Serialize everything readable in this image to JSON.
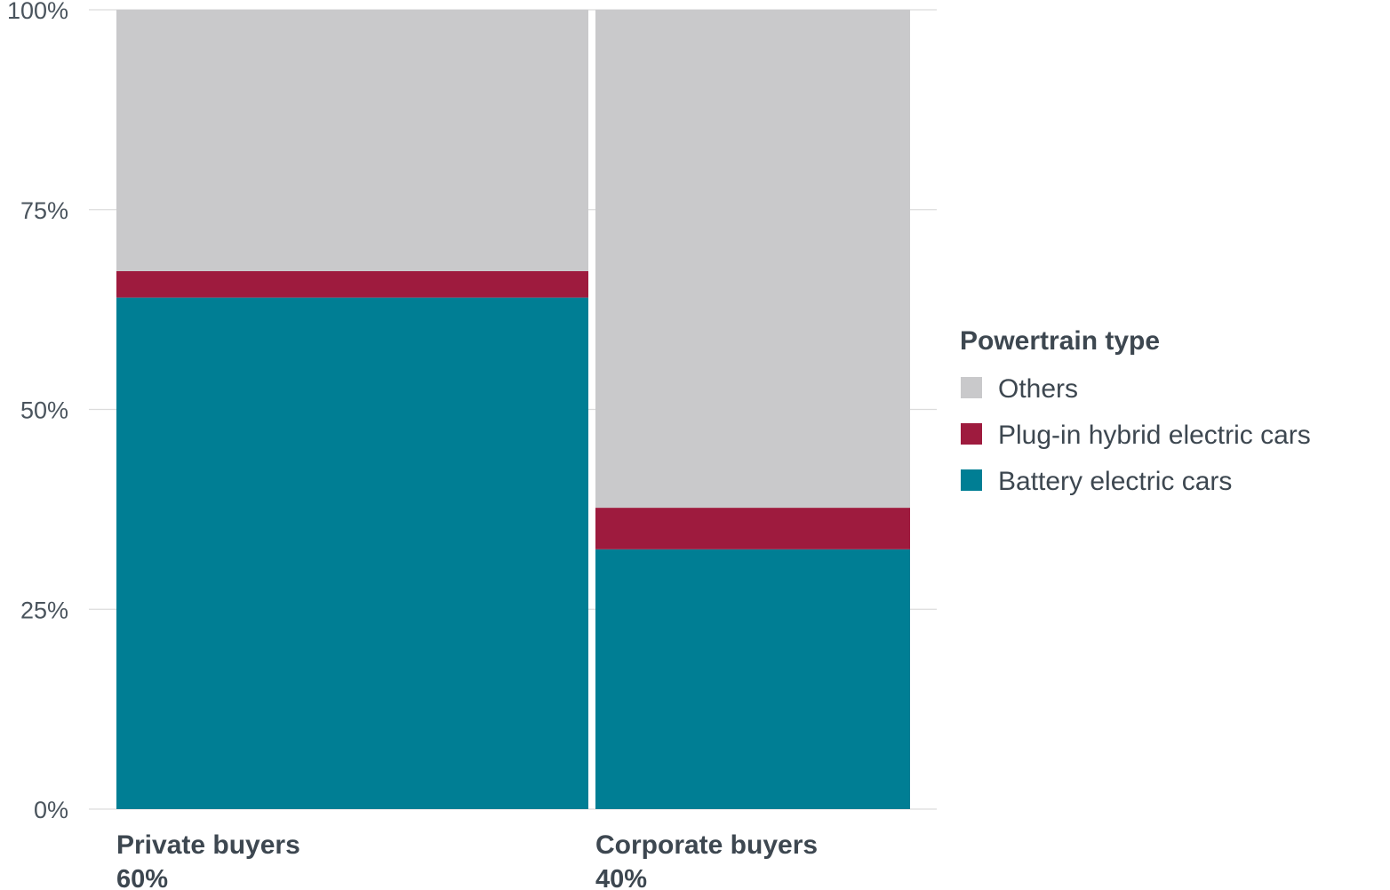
{
  "chart_data": {
    "type": "bar",
    "subtype": "marimekko",
    "ylim": [
      0,
      100
    ],
    "y_ticks": [
      0,
      25,
      50,
      75,
      100
    ],
    "y_tick_labels": [
      "0%",
      "25%",
      "50%",
      "75%",
      "100%"
    ],
    "grid": true,
    "categories": [
      "Private buyers",
      "Corporate buyers"
    ],
    "category_shares": [
      60,
      40
    ],
    "category_share_labels": [
      "60%",
      "40%"
    ],
    "series": [
      {
        "name": "Battery electric cars",
        "values": [
          64,
          32.5
        ],
        "color": "#007e94"
      },
      {
        "name": "Plug-in hybrid electric cars",
        "values": [
          3.3,
          5.2
        ],
        "color": "#9e1b3e"
      },
      {
        "name": "Others",
        "values": [
          32.7,
          62.3
        ],
        "color": "#c9c9cb"
      }
    ],
    "legend": {
      "title": "Powertrain type",
      "placement": "right",
      "entries": [
        "Others",
        "Plug-in hybrid electric cars",
        "Battery electric cars"
      ]
    }
  }
}
